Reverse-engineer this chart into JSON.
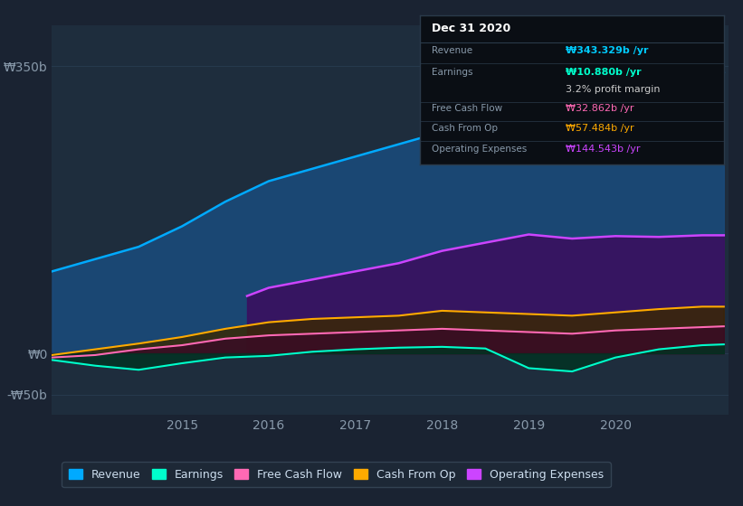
{
  "bg_color": "#1a2332",
  "plot_bg_color": "#1e2d3d",
  "grid_color": "#2a3f55",
  "ylabel_color": "#8899aa",
  "yticks": [
    350,
    0,
    -50
  ],
  "ytick_labels": [
    "₩350b",
    "₩0",
    "-₩50b"
  ],
  "ylim": [
    -75,
    400
  ],
  "xlim_start": 2013.5,
  "xlim_end": 2021.3,
  "xtick_years": [
    2015,
    2016,
    2017,
    2018,
    2019,
    2020
  ],
  "info_box": {
    "title": "Dec 31 2020",
    "bg": "#0a0e14",
    "border": "#2a3a4a",
    "rows": [
      {
        "label": "Revenue",
        "value": "₩343.329b /yr",
        "value_color": "#00ccff",
        "bold": true
      },
      {
        "label": "Earnings",
        "value": "₩10.880b /yr",
        "value_color": "#00ffcc",
        "bold": true
      },
      {
        "label": "",
        "value": "3.2% profit margin",
        "value_color": "#cccccc",
        "bold": false
      },
      {
        "label": "Free Cash Flow",
        "value": "₩32.862b /yr",
        "value_color": "#ff69b4",
        "bold": false
      },
      {
        "label": "Cash From Op",
        "value": "₩57.484b /yr",
        "value_color": "#ffaa00",
        "bold": false
      },
      {
        "label": "Operating Expenses",
        "value": "₩144.543b /yr",
        "value_color": "#cc44ff",
        "bold": false
      }
    ]
  },
  "series": {
    "revenue": {
      "color": "#00aaff",
      "fill_color": "#1a4a7a",
      "label": "Revenue",
      "x": [
        2013.5,
        2014.0,
        2014.5,
        2015.0,
        2015.5,
        2016.0,
        2016.5,
        2017.0,
        2017.5,
        2018.0,
        2018.5,
        2019.0,
        2019.5,
        2020.0,
        2020.5,
        2021.0,
        2021.25
      ],
      "y": [
        100,
        115,
        130,
        155,
        185,
        210,
        225,
        240,
        255,
        270,
        280,
        300,
        295,
        310,
        320,
        340,
        343
      ]
    },
    "operating_expenses": {
      "color": "#cc44ff",
      "fill_color": "#3a1060",
      "label": "Operating Expenses",
      "x": [
        2015.75,
        2016.0,
        2016.5,
        2017.0,
        2017.5,
        2018.0,
        2018.5,
        2019.0,
        2019.5,
        2020.0,
        2020.5,
        2021.0,
        2021.25
      ],
      "y": [
        70,
        80,
        90,
        100,
        110,
        125,
        135,
        145,
        140,
        143,
        142,
        144,
        144
      ]
    },
    "cash_from_op": {
      "color": "#ffaa00",
      "fill_color": "#3a2800",
      "label": "Cash From Op",
      "x": [
        2013.5,
        2014.0,
        2014.5,
        2015.0,
        2015.5,
        2016.0,
        2016.5,
        2017.0,
        2017.5,
        2018.0,
        2018.5,
        2019.0,
        2019.5,
        2020.0,
        2020.5,
        2021.0,
        2021.25
      ],
      "y": [
        -2,
        5,
        12,
        20,
        30,
        38,
        42,
        44,
        46,
        52,
        50,
        48,
        46,
        50,
        54,
        57,
        57
      ]
    },
    "free_cash_flow": {
      "color": "#ff69b4",
      "fill_color": "#3a0a25",
      "label": "Free Cash Flow",
      "x": [
        2013.5,
        2014.0,
        2014.5,
        2015.0,
        2015.5,
        2016.0,
        2016.5,
        2017.0,
        2017.5,
        2018.0,
        2018.5,
        2019.0,
        2019.5,
        2020.0,
        2020.5,
        2021.0,
        2021.25
      ],
      "y": [
        -5,
        -2,
        5,
        10,
        18,
        22,
        24,
        26,
        28,
        30,
        28,
        26,
        24,
        28,
        30,
        32,
        33
      ]
    },
    "earnings": {
      "color": "#00ffcc",
      "fill_color": "#003322",
      "label": "Earnings",
      "x": [
        2013.5,
        2014.0,
        2014.5,
        2015.0,
        2015.5,
        2016.0,
        2016.5,
        2017.0,
        2017.5,
        2018.0,
        2018.5,
        2019.0,
        2019.5,
        2020.0,
        2020.5,
        2021.0,
        2021.25
      ],
      "y": [
        -8,
        -15,
        -20,
        -12,
        -5,
        -3,
        2,
        5,
        7,
        8,
        6,
        -18,
        -22,
        -5,
        5,
        10,
        11
      ]
    }
  },
  "legend_items": [
    {
      "label": "Revenue",
      "color": "#00aaff"
    },
    {
      "label": "Earnings",
      "color": "#00ffcc"
    },
    {
      "label": "Free Cash Flow",
      "color": "#ff69b4"
    },
    {
      "label": "Cash From Op",
      "color": "#ffaa00"
    },
    {
      "label": "Operating Expenses",
      "color": "#cc44ff"
    }
  ]
}
